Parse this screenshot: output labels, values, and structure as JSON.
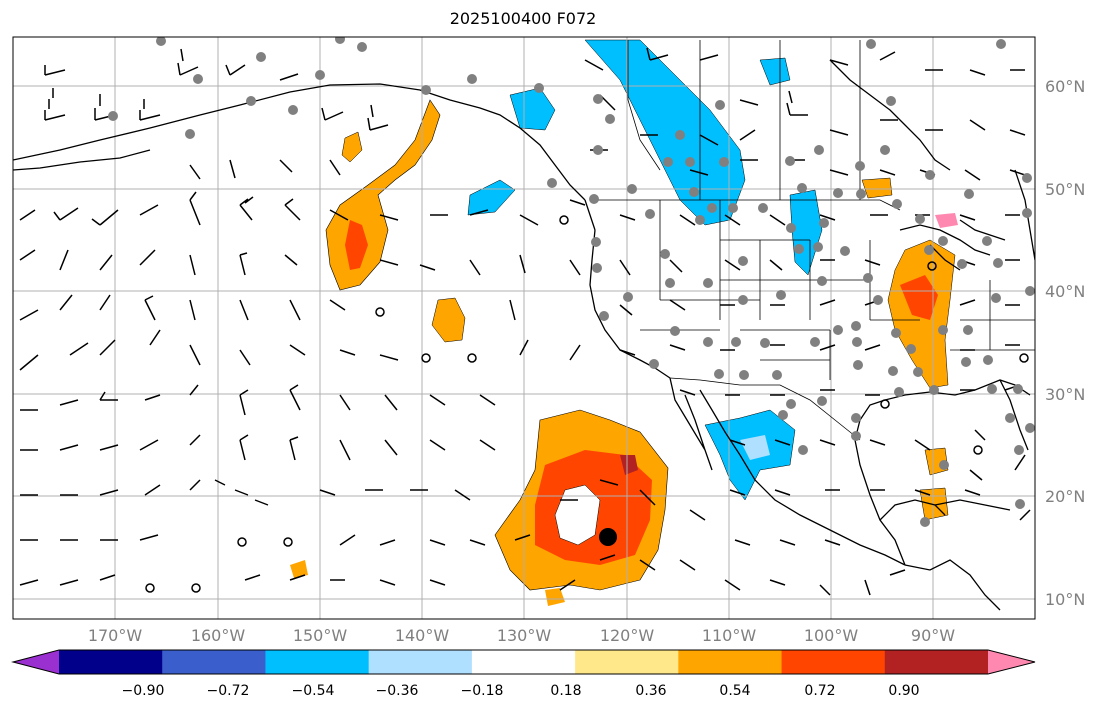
{
  "title": "2025100400 F072",
  "map": {
    "domain_lon": [
      -180,
      -80
    ],
    "domain_lat": [
      8,
      65
    ],
    "lat_labels": [
      "60°N",
      "50°N",
      "40°N",
      "30°N",
      "20°N",
      "10°N"
    ],
    "lon_labels": [
      "170°W",
      "160°W",
      "150°W",
      "140°W",
      "130°W",
      "120°W",
      "110°W",
      "100°W",
      "90°W"
    ],
    "gridlines": true,
    "features": [
      "coastlines",
      "country-borders",
      "us-state-borders",
      "wind-barbs",
      "station-dots",
      "tropical-cyclone-marker"
    ]
  },
  "colorbar": {
    "ticks": [
      "−0.90",
      "−0.72",
      "−0.54",
      "−0.36",
      "−0.18",
      "0.18",
      "0.36",
      "0.54",
      "0.72",
      "0.90"
    ],
    "colors": [
      "#9b30d0",
      "#00008b",
      "#3a5fcd",
      "#00bfff",
      "#b0e0ff",
      "#ffffff",
      "#ffe88a",
      "#ffa500",
      "#ff4500",
      "#b22222",
      "#ff88b0"
    ],
    "extend": "both"
  },
  "colors": {
    "grid": "#b0b0b0",
    "dots": "#808080",
    "axis_labels": "#808080"
  }
}
